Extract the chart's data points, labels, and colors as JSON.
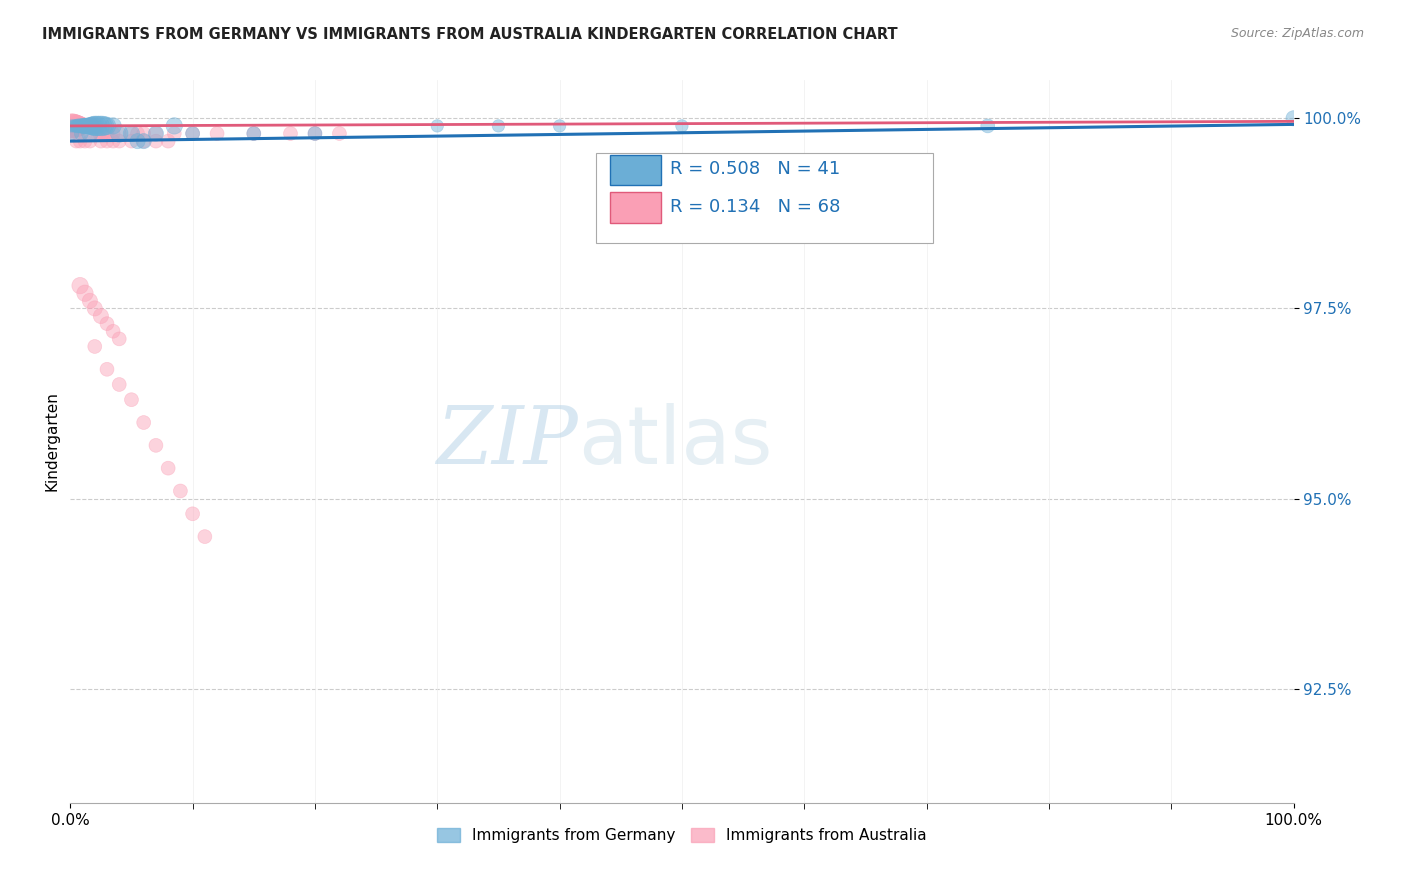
{
  "title": "IMMIGRANTS FROM GERMANY VS IMMIGRANTS FROM AUSTRALIA KINDERGARTEN CORRELATION CHART",
  "source": "Source: ZipAtlas.com",
  "ylabel": "Kindergarten",
  "xlim": [
    0,
    1.0
  ],
  "ylim": [
    0.91,
    1.005
  ],
  "ytick_vals": [
    0.925,
    0.95,
    0.975,
    1.0
  ],
  "ytick_labels": [
    "92.5%",
    "95.0%",
    "97.5%",
    "100.0%"
  ],
  "xtick_labels": [
    "0.0%",
    "100.0%"
  ],
  "legend_labels": [
    "Immigrants from Germany",
    "Immigrants from Australia"
  ],
  "blue_color": "#6baed6",
  "pink_color": "#fa9fb5",
  "blue_line_color": "#2171b5",
  "pink_line_color": "#e05a7a",
  "R_blue": 0.508,
  "N_blue": 41,
  "R_pink": 0.134,
  "N_pink": 68,
  "blue_x": [
    0.001,
    0.002,
    0.003,
    0.004,
    0.005,
    0.006,
    0.007,
    0.008,
    0.009,
    0.01,
    0.011,
    0.012,
    0.013,
    0.014,
    0.015,
    0.016,
    0.017,
    0.018,
    0.019,
    0.02,
    0.022,
    0.024,
    0.026,
    0.028,
    0.03,
    0.035,
    0.04,
    0.05,
    0.055,
    0.06,
    0.07,
    0.085,
    0.1,
    0.15,
    0.2,
    0.3,
    0.35,
    0.4,
    0.5,
    0.75,
    1.0
  ],
  "blue_y": [
    0.999,
    0.998,
    0.999,
    0.999,
    0.999,
    0.999,
    0.999,
    0.999,
    0.998,
    0.999,
    0.999,
    0.999,
    0.999,
    0.999,
    0.999,
    0.998,
    0.999,
    0.999,
    0.999,
    0.999,
    0.999,
    0.999,
    0.999,
    0.999,
    0.999,
    0.999,
    0.998,
    0.998,
    0.997,
    0.997,
    0.998,
    0.999,
    0.998,
    0.998,
    0.998,
    0.999,
    0.999,
    0.999,
    0.999,
    0.999,
    1.0
  ],
  "blue_sizes": [
    80,
    80,
    80,
    80,
    80,
    100,
    100,
    100,
    100,
    120,
    120,
    120,
    120,
    120,
    140,
    140,
    160,
    160,
    180,
    200,
    200,
    200,
    200,
    180,
    160,
    140,
    160,
    140,
    120,
    120,
    120,
    140,
    100,
    100,
    100,
    80,
    80,
    80,
    80,
    100,
    120
  ],
  "pink_x": [
    0.001,
    0.002,
    0.003,
    0.004,
    0.005,
    0.006,
    0.007,
    0.008,
    0.009,
    0.01,
    0.011,
    0.012,
    0.013,
    0.014,
    0.015,
    0.016,
    0.017,
    0.018,
    0.019,
    0.02,
    0.022,
    0.024,
    0.026,
    0.028,
    0.03,
    0.035,
    0.04,
    0.05,
    0.055,
    0.06,
    0.07,
    0.085,
    0.1,
    0.12,
    0.15,
    0.18,
    0.2,
    0.22,
    0.025,
    0.03,
    0.035,
    0.04,
    0.05,
    0.06,
    0.07,
    0.08,
    0.005,
    0.008,
    0.012,
    0.016,
    0.008,
    0.012,
    0.016,
    0.02,
    0.025,
    0.03,
    0.035,
    0.04,
    0.02,
    0.03,
    0.04,
    0.05,
    0.06,
    0.07,
    0.08,
    0.09,
    0.1,
    0.11
  ],
  "pink_y": [
    0.999,
    0.999,
    0.999,
    0.999,
    0.999,
    0.999,
    0.999,
    0.999,
    0.999,
    0.999,
    0.999,
    0.999,
    0.999,
    0.999,
    0.999,
    0.999,
    0.999,
    0.999,
    0.999,
    0.999,
    0.998,
    0.998,
    0.998,
    0.998,
    0.998,
    0.998,
    0.998,
    0.998,
    0.998,
    0.998,
    0.998,
    0.998,
    0.998,
    0.998,
    0.998,
    0.998,
    0.998,
    0.998,
    0.997,
    0.997,
    0.997,
    0.997,
    0.997,
    0.997,
    0.997,
    0.997,
    0.997,
    0.997,
    0.997,
    0.997,
    0.978,
    0.977,
    0.976,
    0.975,
    0.974,
    0.973,
    0.972,
    0.971,
    0.97,
    0.967,
    0.965,
    0.963,
    0.96,
    0.957,
    0.954,
    0.951,
    0.948,
    0.945
  ],
  "pink_sizes": [
    300,
    300,
    280,
    260,
    240,
    220,
    200,
    180,
    160,
    140,
    120,
    120,
    120,
    120,
    120,
    120,
    120,
    120,
    120,
    120,
    100,
    100,
    100,
    100,
    100,
    100,
    100,
    100,
    100,
    100,
    100,
    100,
    100,
    100,
    100,
    100,
    100,
    100,
    100,
    100,
    100,
    100,
    100,
    100,
    100,
    100,
    100,
    100,
    100,
    100,
    140,
    140,
    120,
    120,
    120,
    100,
    100,
    100,
    100,
    100,
    100,
    100,
    100,
    100,
    100,
    100,
    100,
    100
  ],
  "watermark_zip": "ZIP",
  "watermark_atlas": "atlas",
  "background_color": "#ffffff",
  "grid_color": "#cccccc",
  "blue_trend_intercept": 0.997,
  "blue_trend_slope": 0.0022,
  "pink_trend_intercept": 0.999,
  "pink_trend_slope": 0.0006
}
